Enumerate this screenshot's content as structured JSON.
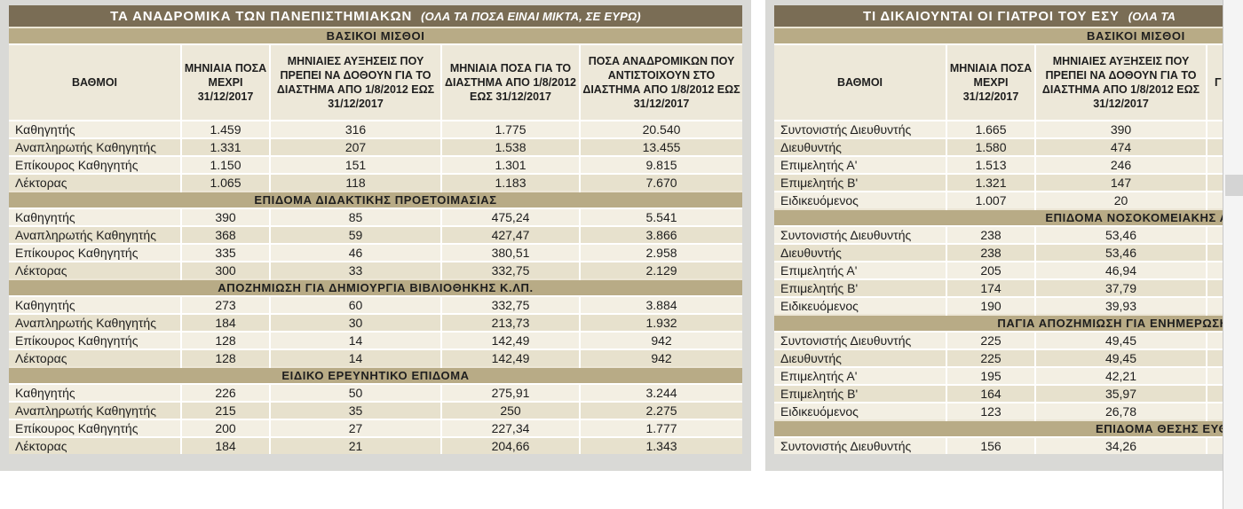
{
  "left_table": {
    "title": "ΤΑ ΑΝΑΔΡΟΜΙΚΑ ΤΩΝ ΠΑΝΕΠΙΣΤΗΜΙΑΚΩΝ",
    "subtitle": "(ΟΛΑ ΤΑ ΠΟΣΑ ΕΙΝΑΙ ΜΙΚΤΑ, ΣΕ ΕΥΡΩ)",
    "first_section": "ΒΑΣΙΚΟΙ ΜΙΣΘΟΙ",
    "headers": [
      "ΒΑΘΜΟΙ",
      "ΜΗΝΙΑΙΑ ΠΟΣΑ ΜΕΧΡΙ 31/12/2017",
      "ΜΗΝΙΑΙΕΣ ΑΥΞΗΣΕΙΣ ΠΟΥ ΠΡΕΠΕΙ ΝΑ ΔΟΘΟΥΝ ΓΙΑ ΤΟ ΔΙΑΣΤΗΜΑ ΑΠΟ 1/8/2012 ΕΩΣ 31/12/2017",
      "ΜΗΝΙΑΙΑ ΠΟΣΑ ΓΙΑ ΤΟ ΔΙΑΣΤΗΜΑ ΑΠΟ 1/8/2012 ΕΩΣ 31/12/2017",
      "ΠΟΣΑ ΑΝΑΔΡΟΜΙΚΩΝ ΠΟΥ ΑΝΤΙΣΤΟΙΧΟΥΝ ΣΤΟ ΔΙΑΣΤΗΜΑ ΑΠΟ 1/8/2012 ΕΩΣ 31/12/2017"
    ],
    "groups": [
      {
        "rows": [
          [
            "Καθηγητής",
            "1.459",
            "316",
            "1.775",
            "20.540"
          ],
          [
            "Αναπληρωτής Καθηγητής",
            "1.331",
            "207",
            "1.538",
            "13.455"
          ],
          [
            "Επίκουρος Καθηγητής",
            "1.150",
            "151",
            "1.301",
            "9.815"
          ],
          [
            "Λέκτορας",
            "1.065",
            "118",
            "1.183",
            "7.670"
          ]
        ]
      },
      {
        "section": "ΕΠΙΔΟΜΑ ΔΙΔΑΚΤΙΚΗΣ ΠΡΟΕΤΟΙΜΑΣΙΑΣ",
        "rows": [
          [
            "Καθηγητής",
            "390",
            "85",
            "475,24",
            "5.541"
          ],
          [
            "Αναπληρωτής Καθηγητής",
            "368",
            "59",
            "427,47",
            "3.866"
          ],
          [
            "Επίκουρος Καθηγητής",
            "335",
            "46",
            "380,51",
            "2.958"
          ],
          [
            "Λέκτορας",
            "300",
            "33",
            "332,75",
            "2.129"
          ]
        ]
      },
      {
        "section": "ΑΠΟΖΗΜΙΩΣΗ ΓΙΑ ΔΗΜΙΟΥΡΓΙΑ ΒΙΒΛΙΟΘΗΚΗΣ Κ.ΛΠ.",
        "rows": [
          [
            "Καθηγητής",
            "273",
            "60",
            "332,75",
            "3.884"
          ],
          [
            "Αναπληρωτής Καθηγητής",
            "184",
            "30",
            "213,73",
            "1.932"
          ],
          [
            "Επίκουρος Καθηγητής",
            "128",
            "14",
            "142,49",
            "942"
          ],
          [
            "Λέκτορας",
            "128",
            "14",
            "142,49",
            "942"
          ]
        ]
      },
      {
        "section": "ΕΙΔΙΚΟ ΕΡΕΥΝΗΤΙΚΟ ΕΠΙΔΟΜΑ",
        "rows": [
          [
            "Καθηγητής",
            "226",
            "50",
            "275,91",
            "3.244"
          ],
          [
            "Αναπληρωτής Καθηγητής",
            "215",
            "35",
            "250",
            "2.275"
          ],
          [
            "Επίκουρος Καθηγητής",
            "200",
            "27",
            "227,34",
            "1.777"
          ],
          [
            "Λέκτορας",
            "184",
            "21",
            "204,66",
            "1.343"
          ]
        ]
      }
    ]
  },
  "right_table": {
    "title": "ΤΙ ΔΙΚΑΙΟΥΝΤΑΙ ΟΙ ΓΙΑΤΡΟΙ ΤΟΥ ΕΣΥ",
    "subtitle": "(ΟΛΑ ΤΑ",
    "first_section": "ΒΑΣΙΚΟΙ ΜΙΣΘΟΙ",
    "headers": [
      "ΒΑΘΜΟΙ",
      "ΜΗΝΙΑΙΑ ΠΟΣΑ ΜΕΧΡΙ 31/12/2017",
      "ΜΗΝΙΑΙΕΣ ΑΥΞΗΣΕΙΣ ΠΟΥ ΠΡΕΠΕΙ ΝΑ ΔΟΘΟΥΝ ΓΙΑ ΤΟ ΔΙΑΣΤΗΜΑ ΑΠΟ 1/8/2012 ΕΩΣ 31/12/2017",
      "Γ"
    ],
    "groups": [
      {
        "rows": [
          [
            "Συντονιστής Διευθυντής",
            "1.665",
            "390"
          ],
          [
            "Διευθυντής",
            "1.580",
            "474"
          ],
          [
            "Επιμελητής Α'",
            "1.513",
            "246"
          ],
          [
            "Επιμελητής Β'",
            "1.321",
            "147"
          ],
          [
            "Ειδικευόμενος",
            "1.007",
            "20"
          ]
        ]
      },
      {
        "section": "ΕΠΙΔΟΜΑ ΝΟΣΟΚΟΜΕΙΑΚΗΣ ΑΠΑΣ",
        "rows": [
          [
            "Συντονιστής Διευθυντής",
            "238",
            "53,46"
          ],
          [
            "Διευθυντής",
            "238",
            "53,46"
          ],
          [
            "Επιμελητής Α'",
            "205",
            "46,94"
          ],
          [
            "Επιμελητής Β'",
            "174",
            "37,79"
          ],
          [
            "Ειδικευόμενος",
            "190",
            "39,93"
          ]
        ]
      },
      {
        "section": "ΠΑΓΙΑ ΑΠΟΖΗΜΙΩΣΗ ΓΙΑ ΕΝΗΜΕΡΩΣΗ ΒΙΒ",
        "rows": [
          [
            "Συντονιστής Διευθυντής",
            "225",
            "49,45"
          ],
          [
            "Διευθυντής",
            "225",
            "49,45"
          ],
          [
            "Επιμελητής Α'",
            "195",
            "42,21"
          ],
          [
            "Επιμελητής Β'",
            "164",
            "35,97"
          ],
          [
            "Ειδικευόμενος",
            "123",
            "26,78"
          ]
        ]
      },
      {
        "section": "ΕΠΙΔΟΜΑ ΘΕΣΗΣ ΕΥΘΥΝΗ",
        "rows": [
          [
            "Συντονιστής Διευθυντής",
            "156",
            "34,26"
          ]
        ]
      }
    ]
  }
}
